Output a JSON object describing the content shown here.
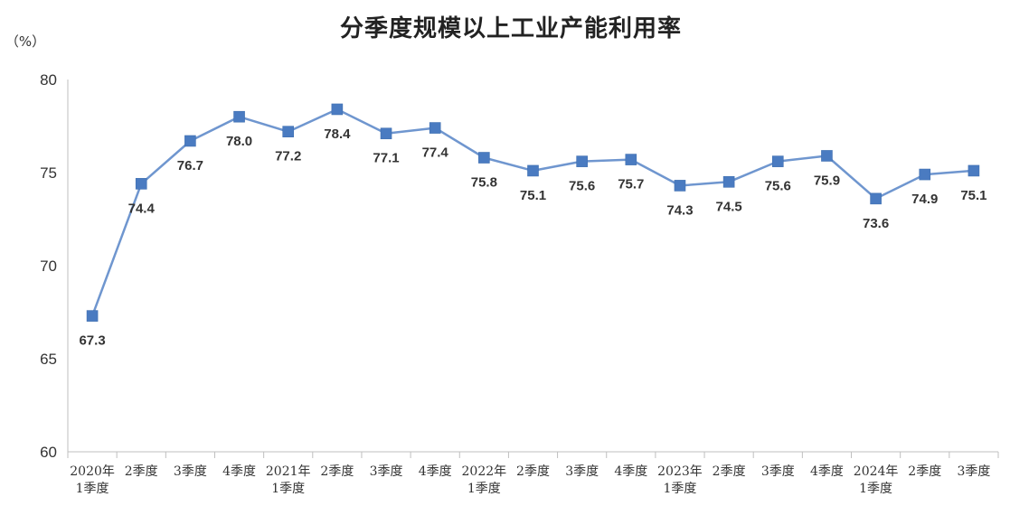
{
  "chart_data": {
    "type": "line",
    "title": "分季度规模以上工业产能利用率",
    "unit": "（%）",
    "xlabel": "",
    "ylabel": "",
    "ylim": [
      60,
      80
    ],
    "yticks": [
      "60",
      "65",
      "70",
      "75",
      "80"
    ],
    "grid": false,
    "legend": "none",
    "colors": {
      "line": "#6f96cf",
      "marker": "#4a7bc1",
      "axis": "#bfbfbf"
    },
    "categories": [
      [
        "2020年",
        "1季度"
      ],
      [
        "2季度"
      ],
      [
        "3季度"
      ],
      [
        "4季度"
      ],
      [
        "2021年",
        "1季度"
      ],
      [
        "2季度"
      ],
      [
        "3季度"
      ],
      [
        "4季度"
      ],
      [
        "2022年",
        "1季度"
      ],
      [
        "2季度"
      ],
      [
        "3季度"
      ],
      [
        "4季度"
      ],
      [
        "2023年",
        "1季度"
      ],
      [
        "2季度"
      ],
      [
        "3季度"
      ],
      [
        "4季度"
      ],
      [
        "2024年",
        "1季度"
      ],
      [
        "2季度"
      ],
      [
        "3季度"
      ]
    ],
    "values": [
      67.3,
      74.4,
      76.7,
      78.0,
      77.2,
      78.4,
      77.1,
      77.4,
      75.8,
      75.1,
      75.6,
      75.7,
      74.3,
      74.5,
      75.6,
      75.9,
      73.6,
      74.9,
      75.1
    ],
    "data_labels": [
      "67.3",
      "74.4",
      "76.7",
      "78.0",
      "77.2",
      "78.4",
      "77.1",
      "77.4",
      "75.8",
      "75.1",
      "75.6",
      "75.7",
      "74.3",
      "74.5",
      "75.6",
      "75.9",
      "73.6",
      "74.9",
      "75.1"
    ]
  }
}
